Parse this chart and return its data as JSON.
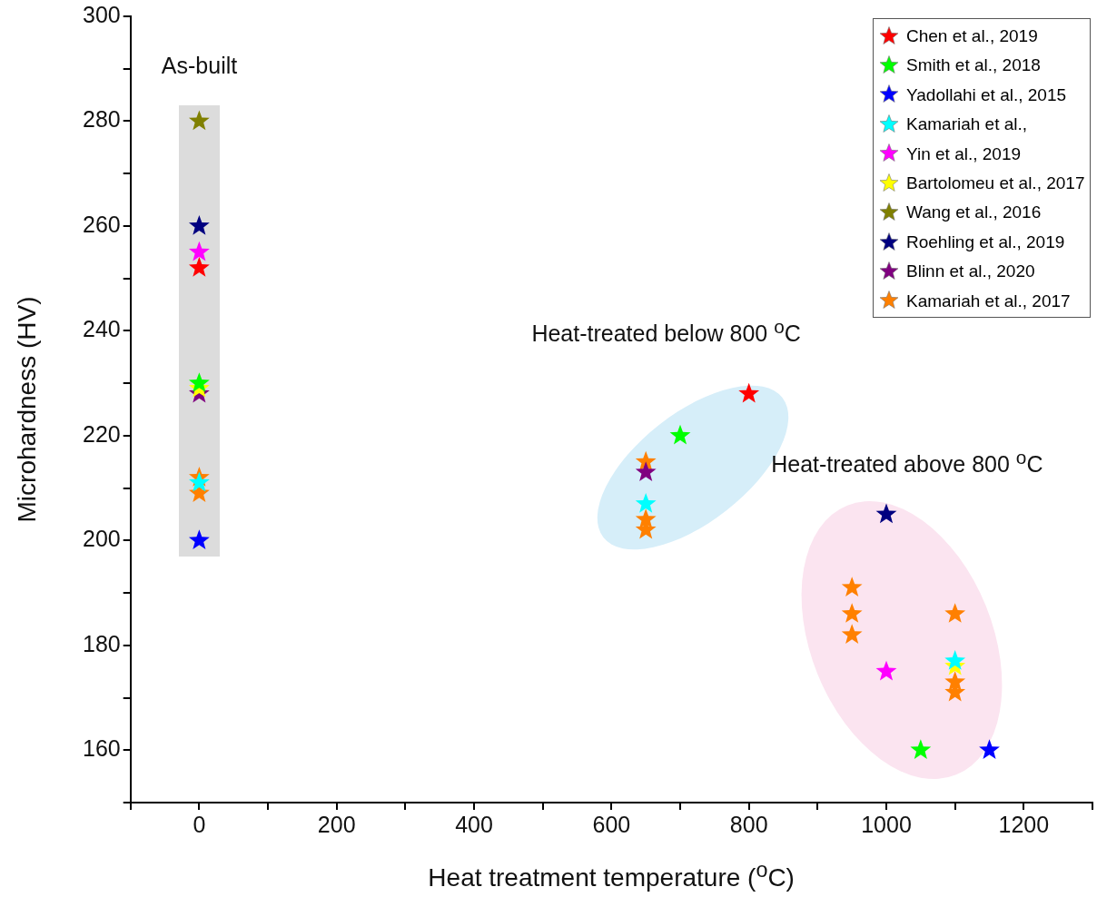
{
  "chart_data": {
    "type": "scatter",
    "xlabel": "Heat treatment temperature ($^{o}$C)",
    "ylabel": "Microhardness (HV)",
    "xlim": [
      -100,
      1300
    ],
    "xticks": [
      {
        "value": -100,
        "label": null
      },
      0,
      {
        "value": 100,
        "label": null
      },
      200,
      {
        "value": 300,
        "label": null
      },
      400,
      {
        "value": 500,
        "label": null
      },
      600,
      {
        "value": 700,
        "label": null
      },
      800,
      {
        "value": 900,
        "label": null
      },
      1000,
      {
        "value": 1100,
        "label": null
      },
      1200,
      {
        "value": 1300,
        "label": null
      }
    ],
    "ylim": [
      150,
      300
    ],
    "yticks": [
      {
        "value": 150,
        "label": null
      },
      160,
      {
        "value": 170,
        "label": null
      },
      180,
      {
        "value": 190,
        "label": null
      },
      200,
      {
        "value": 210,
        "label": null
      },
      220,
      {
        "value": 230,
        "label": null
      },
      240,
      {
        "value": 250,
        "label": null
      },
      260,
      {
        "value": 270,
        "label": null
      },
      280,
      {
        "value": 290,
        "label": null
      },
      300
    ],
    "grid": false,
    "legend": "top right",
    "marker": "star",
    "annotations": [
      "As-built",
      "Heat-treated below 800 $^{o}$C",
      "Heat-treated above 800 $^{o}$C"
    ],
    "series": [
      {
        "name": "Chen et al., 2019",
        "color": "#ff0000",
        "x": [
          0,
          800
        ],
        "values": [
          252,
          228
        ]
      },
      {
        "name": "Smith et al., 2018",
        "color": "#00ff00",
        "x": [
          0,
          700,
          1050
        ],
        "values": [
          230,
          220,
          160
        ]
      },
      {
        "name": "Yadollahi et al., 2015",
        "color": "#0000ff",
        "x": [
          0,
          1150
        ],
        "values": [
          200,
          160
        ]
      },
      {
        "name": "Kamariah et al.,",
        "color": "#00ffff",
        "x": [
          0,
          650,
          1100
        ],
        "values": [
          211,
          207,
          177
        ]
      },
      {
        "name": "Yin et al., 2019",
        "color": "#ff00ff",
        "x": [
          0,
          1000
        ],
        "values": [
          255,
          175
        ]
      },
      {
        "name": "Bartolomeu et al., 2017",
        "color": "#ffff00",
        "x": [
          0,
          1100
        ],
        "values": [
          229,
          176
        ]
      },
      {
        "name": "Wang et al., 2016",
        "color": "#808000",
        "x": [
          0
        ],
        "values": [
          280
        ]
      },
      {
        "name": "Roehling et al., 2019",
        "color": "#000080",
        "x": [
          0,
          1000
        ],
        "values": [
          260,
          205
        ]
      },
      {
        "name": "Blinn et al., 2020",
        "color": "#800080",
        "x": [
          0,
          650
        ],
        "values": [
          228,
          213
        ]
      },
      {
        "name": "Kamariah et al., 2017",
        "color": "#ff8000",
        "x": [
          0,
          0,
          650,
          650,
          650,
          950,
          950,
          950,
          1100,
          1100,
          1100
        ],
        "values": [
          212,
          209,
          215,
          204,
          202,
          191,
          186,
          182,
          186,
          173,
          171
        ]
      }
    ]
  }
}
